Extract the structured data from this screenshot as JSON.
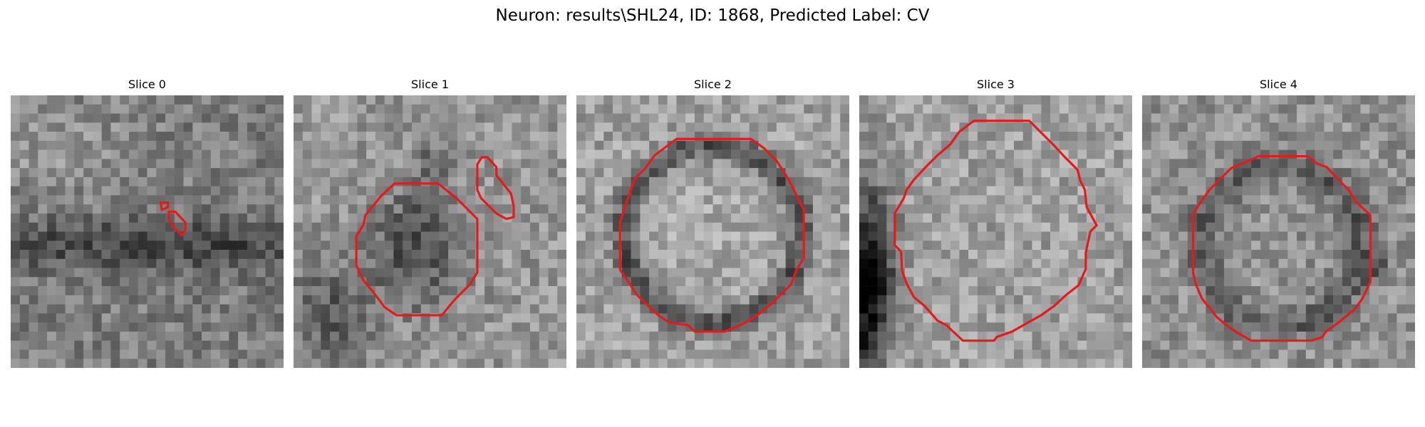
{
  "figure": {
    "title": "Neuron: results\\SHL24, ID: 1868, Predicted Label: CV",
    "contour_color": "#e41a1c"
  },
  "panels": [
    {
      "title": "Slice 0"
    },
    {
      "title": "Slice 1"
    },
    {
      "title": "Slice 2"
    },
    {
      "title": "Slice 3"
    },
    {
      "title": "Slice 4"
    }
  ]
}
